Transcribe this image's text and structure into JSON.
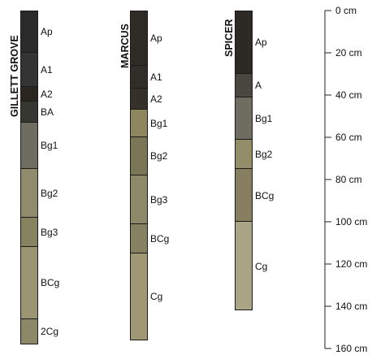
{
  "profiles": [
    {
      "id": "gillett-grove",
      "name": "GILLETT GROVE",
      "horizons": [
        {
          "label": "Ap",
          "top": 0,
          "bottom": 20,
          "color": "#2b2b2b"
        },
        {
          "label": "A1",
          "top": 20,
          "bottom": 36,
          "color": "#343434"
        },
        {
          "label": "A2",
          "top": 36,
          "bottom": 43,
          "color": "#2a261f"
        },
        {
          "label": "BA",
          "top": 43,
          "bottom": 53,
          "color": "#363730"
        },
        {
          "label": "Bg1",
          "top": 53,
          "bottom": 75,
          "color": "#6e6d60"
        },
        {
          "label": "Bg2",
          "top": 75,
          "bottom": 98,
          "color": "#918b6d"
        },
        {
          "label": "Bg3",
          "top": 98,
          "bottom": 112,
          "color": "#868361"
        },
        {
          "label": "BCg",
          "top": 112,
          "bottom": 146,
          "color": "#9b9573"
        },
        {
          "label": "2Cg",
          "top": 146,
          "bottom": 158,
          "color": "#8b8867"
        }
      ]
    },
    {
      "id": "marcus",
      "name": "MARCUS",
      "horizons": [
        {
          "label": "Ap",
          "top": 0,
          "bottom": 26,
          "color": "#2f2b26"
        },
        {
          "label": "A1",
          "top": 26,
          "bottom": 37,
          "color": "#312d28"
        },
        {
          "label": "A2",
          "top": 37,
          "bottom": 47,
          "color": "#35302a"
        },
        {
          "label": "Bg1",
          "top": 47,
          "bottom": 60,
          "color": "#8c875f"
        },
        {
          "label": "Bg2",
          "top": 60,
          "bottom": 78,
          "color": "#7a7656"
        },
        {
          "label": "Bg3",
          "top": 78,
          "bottom": 101,
          "color": "#8d8a69"
        },
        {
          "label": "BCg",
          "top": 101,
          "bottom": 115,
          "color": "#868161"
        },
        {
          "label": "Cg",
          "top": 115,
          "bottom": 156,
          "color": "#9e9874"
        }
      ]
    },
    {
      "id": "spicer",
      "name": "SPICER",
      "horizons": [
        {
          "label": "Ap",
          "top": 0,
          "bottom": 30,
          "color": "#2d2a25"
        },
        {
          "label": "A",
          "top": 30,
          "bottom": 41,
          "color": "#4a4740"
        },
        {
          "label": "Bg1",
          "top": 41,
          "bottom": 61,
          "color": "#6e6d5f"
        },
        {
          "label": "Bg2",
          "top": 61,
          "bottom": 75,
          "color": "#948d69"
        },
        {
          "label": "BCg",
          "top": 75,
          "bottom": 100,
          "color": "#877f5f"
        },
        {
          "label": "Cg",
          "top": 100,
          "bottom": 142,
          "color": "#aaa585"
        }
      ]
    }
  ],
  "depth_scale": {
    "unit": "cm",
    "min": 0,
    "max": 160,
    "ticks": [
      {
        "value": 0,
        "label": "0 cm"
      },
      {
        "value": 20,
        "label": "20 cm"
      },
      {
        "value": 40,
        "label": "40 cm"
      },
      {
        "value": 60,
        "label": "60 cm"
      },
      {
        "value": 80,
        "label": "80 cm"
      },
      {
        "value": 100,
        "label": "100 cm"
      },
      {
        "value": 120,
        "label": "120 cm"
      },
      {
        "value": 140,
        "label": "140 cm"
      },
      {
        "value": 160,
        "label": "160 cm"
      }
    ]
  }
}
